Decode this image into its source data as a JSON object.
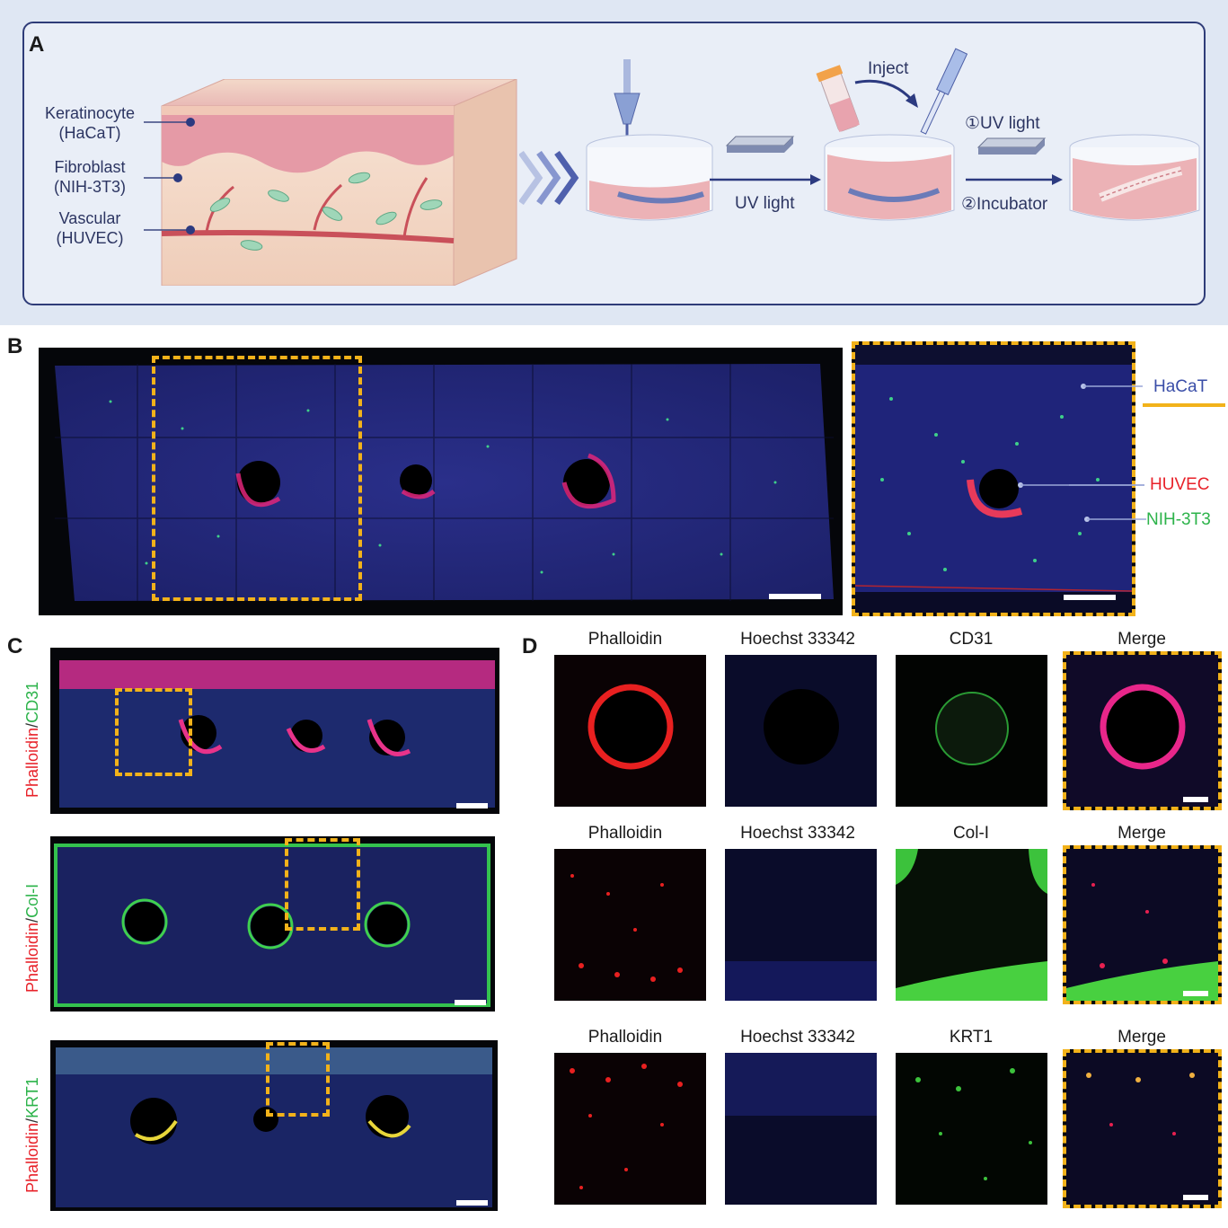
{
  "panel_letters": {
    "a": "A",
    "b": "B",
    "c": "C",
    "d": "D"
  },
  "panelA": {
    "cell_labels": [
      {
        "name": "Keratinocyte",
        "line": "(HaCaT)"
      },
      {
        "name": "Fibroblast",
        "line": "(NIH-3T3)"
      },
      {
        "name": "Vascular",
        "line": "(HUVEC)"
      }
    ],
    "step_uv": "UV light",
    "inject": "Inject",
    "uv_step1": "①UV light",
    "incubator_step2": "②Incubator"
  },
  "panelB": {
    "labels": {
      "hacat": "HaCaT",
      "huvec": "HUVEC",
      "nih": "NIH-3T3"
    },
    "colors": {
      "hacat": "#3a4ea8",
      "huvec": "#e8222a",
      "nih": "#2cb34a"
    }
  },
  "panelC": {
    "rows": [
      {
        "red": "Phalloidin",
        "sep": "/",
        "green": "CD31"
      },
      {
        "red": "Phalloidin",
        "sep": "/",
        "green": "Col-I"
      },
      {
        "red": "Phalloidin",
        "sep": "/",
        "green": "KRT1"
      }
    ]
  },
  "panelD": {
    "rows": [
      [
        "Phalloidin",
        "Hoechst 33342",
        "CD31",
        "Merge"
      ],
      [
        "Phalloidin",
        "Hoechst 33342",
        "Col-I",
        "Merge"
      ],
      [
        "Phalloidin",
        "Hoechst 33342",
        "KRT1",
        "Merge"
      ]
    ]
  }
}
